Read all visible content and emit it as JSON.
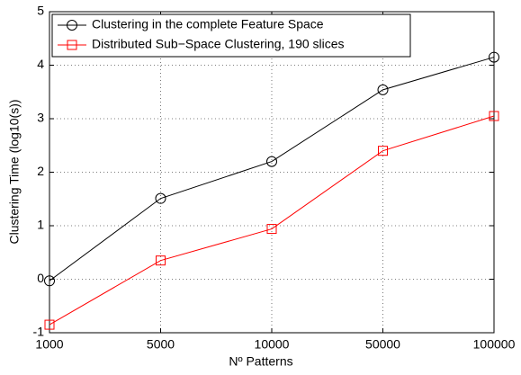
{
  "chart_data": {
    "type": "line",
    "xlabel": "Nº Patterns",
    "ylabel": "Clustering Time (log10(s))",
    "categories": [
      "1000",
      "5000",
      "10000",
      "50000",
      "100000"
    ],
    "series": [
      {
        "name": "Clustering in the complete Feature Space",
        "color": "#000000",
        "marker": "circle",
        "values": [
          -0.03,
          1.51,
          2.2,
          3.54,
          4.15
        ]
      },
      {
        "name": "Distributed Sub−Space Clustering, 190 slices",
        "color": "#ff0000",
        "marker": "square",
        "values": [
          -0.85,
          0.35,
          0.94,
          2.4,
          3.05
        ]
      }
    ],
    "ylim": [
      -1,
      5
    ],
    "yticks": [
      -1,
      0,
      1,
      2,
      3,
      4,
      5
    ],
    "grid": true,
    "legend": "upper left"
  }
}
